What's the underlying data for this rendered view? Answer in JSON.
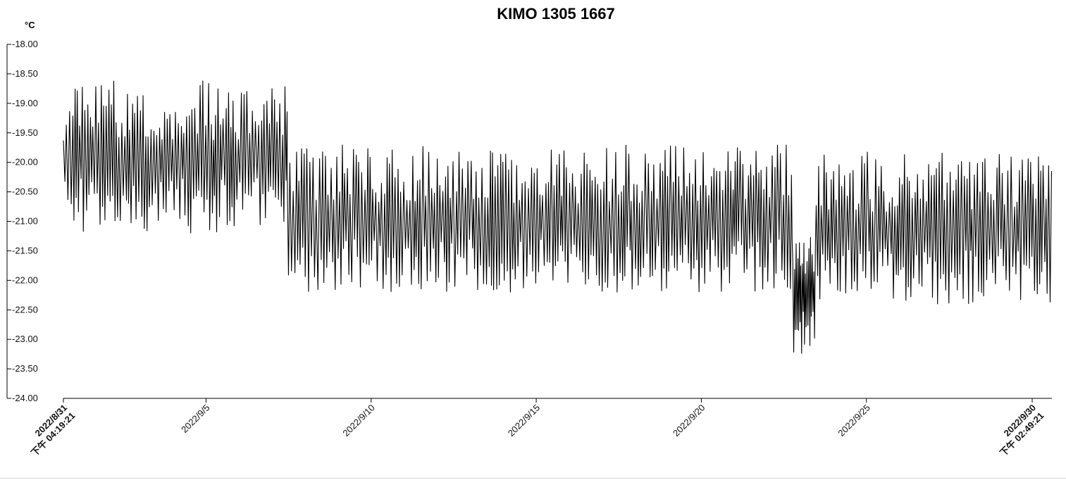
{
  "chart_data": {
    "type": "line",
    "title": "KIMO 1305 1667",
    "ylabel": "°C",
    "xlabel": "",
    "ylim": [
      -24.0,
      -18.0
    ],
    "y_ticks": [
      "-18.00",
      "-18.50",
      "-19.00",
      "-19.50",
      "-20.00",
      "-20.50",
      "-21.00",
      "-21.50",
      "-22.00",
      "-22.50",
      "-23.00",
      "-23.50",
      "-24.00"
    ],
    "x_range": [
      "2022-08-31 16:19:21",
      "2022-09-30 14:49:21"
    ],
    "x_ticks": [
      {
        "line1": "2022/8/31",
        "line2": "下午 04:19:21",
        "bold": true
      },
      {
        "line1": "2022/9/5",
        "line2": "",
        "bold": false
      },
      {
        "line1": "2022/9/10",
        "line2": "",
        "bold": false
      },
      {
        "line1": "2022/9/15",
        "line2": "",
        "bold": false
      },
      {
        "line1": "2022/9/20",
        "line2": "",
        "bold": false
      },
      {
        "line1": "2022/9/25",
        "line2": "",
        "bold": false
      },
      {
        "line1": "2022/9/30",
        "line2": "下午 02:49:21",
        "bold": true
      }
    ],
    "grid": false,
    "legend": "none",
    "series": [
      {
        "color": "#000000",
        "segments": [
          {
            "start": "2022-08-31 16:19:21",
            "end": "2022-09-07 11:00:00",
            "period_hours": 2.0,
            "min": -21.2,
            "max": -18.6
          },
          {
            "start": "2022-09-07 11:00:00",
            "end": "2022-09-22 17:30:00",
            "period_hours": 2.0,
            "min": -22.2,
            "max": -19.7
          },
          {
            "start": "2022-09-22 17:30:00",
            "end": "2022-09-22 18:30:00",
            "period_hours": 1.0,
            "min": -21.8,
            "max": -19.2
          },
          {
            "start": "2022-09-22 18:30:00",
            "end": "2022-09-23 11:30:00",
            "period_hours": 1.2,
            "min": -23.3,
            "max": -21.0
          },
          {
            "start": "2022-09-23 11:30:00",
            "end": "2022-09-30 14:49:21",
            "period_hours": 2.0,
            "min": -22.4,
            "max": -19.8
          }
        ]
      }
    ]
  }
}
